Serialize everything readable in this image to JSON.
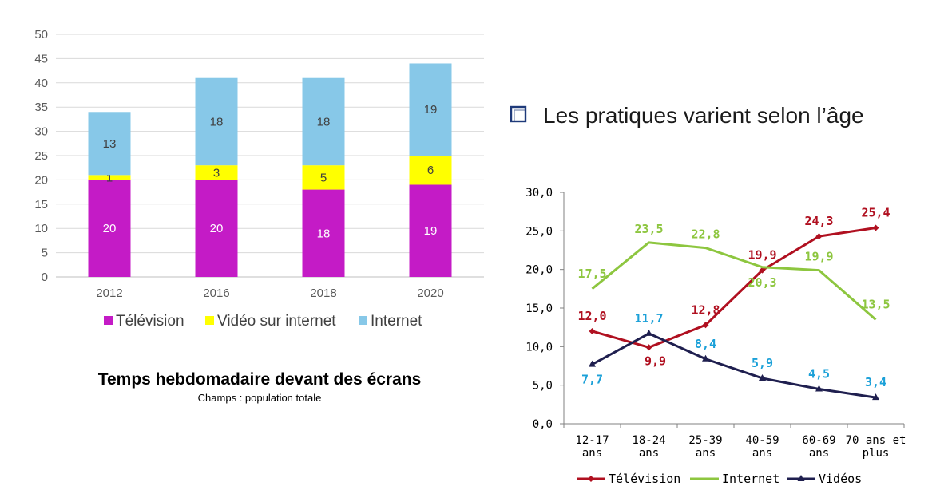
{
  "heading": {
    "text": "Les pratiques varient selon l’âge"
  },
  "colors": {
    "television_bar": "#c41bc6",
    "video_bar": "#ffff00",
    "internet_bar": "#87c8e8",
    "television_line": "#b01020",
    "internet_line": "#8dc63f",
    "videos_line": "#1f1f4f",
    "videos_label": "#1aa0d8"
  },
  "chart_data": [
    {
      "type": "bar",
      "stacked": true,
      "title": "Temps hebdomadaire devant des écrans",
      "subtitle": "Champs : population totale",
      "categories": [
        "2012",
        "2016",
        "2018",
        "2020"
      ],
      "ylim": [
        0,
        50
      ],
      "yticks": [
        0,
        5,
        10,
        15,
        20,
        25,
        30,
        35,
        40,
        45,
        50
      ],
      "grid": true,
      "legend_position": "bottom",
      "series": [
        {
          "name": "Télévision",
          "values": [
            20,
            20,
            18,
            19
          ]
        },
        {
          "name": "Vidéo sur internet",
          "values": [
            1,
            3,
            5,
            6
          ]
        },
        {
          "name": "Internet",
          "values": [
            13,
            18,
            18,
            19
          ]
        }
      ]
    },
    {
      "type": "line",
      "categories": [
        "12-17 ans",
        "18-24 ans",
        "25-39 ans",
        "40-59 ans",
        "60-69 ans",
        "70 ans et plus"
      ],
      "ylim": [
        0,
        30
      ],
      "yticks": [
        "0,0",
        "5,0",
        "10,0",
        "15,0",
        "20,0",
        "25,0",
        "30,0"
      ],
      "grid": false,
      "legend_position": "bottom",
      "series": [
        {
          "name": "Télévision",
          "values": [
            12.0,
            9.9,
            12.8,
            19.9,
            24.3,
            25.4
          ],
          "labels": [
            "12,0",
            "9,9",
            "12,8",
            "19,9",
            "24,3",
            "25,4"
          ]
        },
        {
          "name": "Internet",
          "values": [
            17.5,
            23.5,
            22.8,
            20.3,
            19.9,
            13.5
          ],
          "labels": [
            "17,5",
            "23,5",
            "22,8",
            "20,3",
            "19,9",
            "13,5"
          ]
        },
        {
          "name": "Vidéos",
          "values": [
            7.7,
            11.7,
            8.4,
            5.9,
            4.5,
            3.4
          ],
          "labels": [
            "7,7",
            "11,7",
            "8,4",
            "5,9",
            "4,5",
            "3,4"
          ]
        }
      ]
    }
  ]
}
